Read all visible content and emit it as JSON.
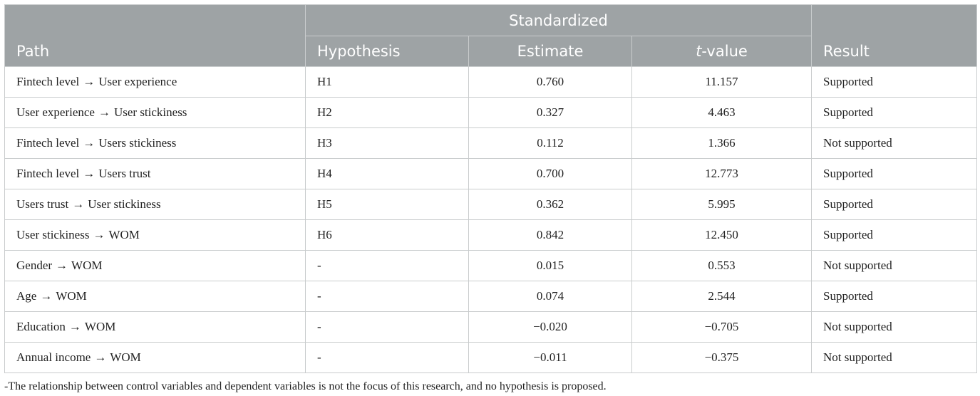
{
  "header": {
    "path": "Path",
    "group": "Standardized",
    "hypothesis": "Hypothesis",
    "estimate": "Estimate",
    "t_italic": "t",
    "t_suffix": "-value",
    "result": "Result"
  },
  "arrow": "→",
  "rows": [
    {
      "from": "Fintech level",
      "to": "User experience",
      "hypothesis": "H1",
      "estimate": "0.760",
      "t": "11.157",
      "result": "Supported"
    },
    {
      "from": "User experience",
      "to": "User stickiness",
      "hypothesis": "H2",
      "estimate": "0.327",
      "t": "4.463",
      "result": "Supported"
    },
    {
      "from": "Fintech level",
      "to": "Users stickiness",
      "hypothesis": "H3",
      "estimate": "0.112",
      "t": "1.366",
      "result": "Not supported"
    },
    {
      "from": "Fintech level",
      "to": "Users trust",
      "hypothesis": "H4",
      "estimate": "0.700",
      "t": "12.773",
      "result": "Supported"
    },
    {
      "from": "Users trust",
      "to": "User stickiness",
      "hypothesis": "H5",
      "estimate": "0.362",
      "t": "5.995",
      "result": "Supported"
    },
    {
      "from": "User stickiness",
      "to": "WOM",
      "hypothesis": "H6",
      "estimate": "0.842",
      "t": "12.450",
      "result": "Supported"
    },
    {
      "from": "Gender",
      "to": "WOM",
      "hypothesis": "-",
      "estimate": "0.015",
      "t": "0.553",
      "result": "Not supported"
    },
    {
      "from": "Age",
      "to": "WOM",
      "hypothesis": "-",
      "estimate": "0.074",
      "t": "2.544",
      "result": "Supported"
    },
    {
      "from": "Education",
      "to": "WOM",
      "hypothesis": "-",
      "estimate": "−0.020",
      "t": "−0.705",
      "result": "Not supported"
    },
    {
      "from": "Annual income",
      "to": "WOM",
      "hypothesis": "-",
      "estimate": "−0.011",
      "t": "−0.375",
      "result": "Not supported"
    }
  ],
  "footnote": "-The relationship between control variables and dependent variables is not the focus of this research, and no hypothesis is proposed.",
  "colors": {
    "header_bg": "#9ea3a5",
    "header_text": "#ffffff",
    "border": "#c9cccd",
    "body_text": "#222222"
  }
}
